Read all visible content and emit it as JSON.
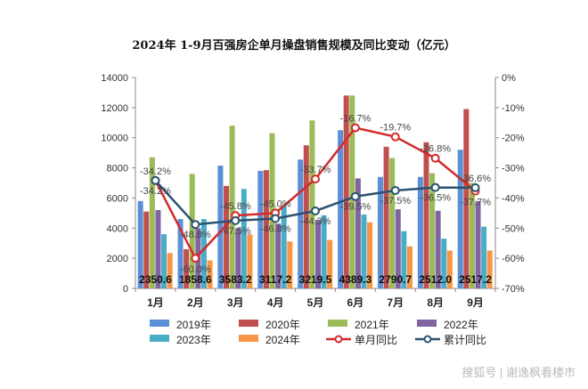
{
  "chart_data": {
    "type": "bar",
    "title": "2024年 1-9月百强房企单月操盘销售规模及同比变动（亿元）",
    "categories": [
      "1月",
      "2月",
      "3月",
      "4月",
      "5月",
      "6月",
      "7月",
      "8月",
      "9月"
    ],
    "ylim": [
      0,
      14000
    ],
    "yticks": [
      0,
      2000,
      4000,
      6000,
      8000,
      10000,
      12000,
      14000
    ],
    "y2lim": [
      -70,
      0
    ],
    "y2ticks": [
      "0%",
      "-10%",
      "-20%",
      "-30%",
      "-40%",
      "-50%",
      "-60%",
      "-70%"
    ],
    "grid": false,
    "legend_position": "bottom",
    "series": [
      {
        "name": "2019年",
        "kind": "bar",
        "color": "#5b8fd6",
        "values": [
          5800,
          4600,
          8150,
          7800,
          8550,
          10500,
          7400,
          7400,
          9200
        ]
      },
      {
        "name": "2020年",
        "kind": "bar",
        "color": "#c0504d",
        "values": [
          5100,
          2600,
          6800,
          7850,
          9500,
          12800,
          9400,
          9700,
          11900
        ]
      },
      {
        "name": "2021年",
        "kind": "bar",
        "color": "#9bbb59",
        "values": [
          8700,
          7600,
          10800,
          10300,
          11150,
          12800,
          8650,
          7650,
          7000
        ]
      },
      {
        "name": "2022年",
        "kind": "bar",
        "color": "#8064a2",
        "values": [
          5200,
          4000,
          4000,
          4300,
          4550,
          7300,
          5250,
          5150,
          5800
        ]
      },
      {
        "name": "2023年",
        "kind": "bar",
        "color": "#4bacc6",
        "values": [
          3600,
          4600,
          6600,
          5500,
          4850,
          4900,
          3800,
          3300,
          4100
        ]
      },
      {
        "name": "2024年",
        "kind": "bar",
        "color": "#f79646",
        "values": [
          2350.6,
          1858.6,
          3583.2,
          3117.2,
          3219.5,
          4389.3,
          2790.7,
          2512.0,
          2517.2
        ],
        "labels": [
          "2350.6",
          "1858.6",
          "3583.2",
          "3117.2",
          "3219.5",
          "4389.3",
          "2790.7",
          "2512.0",
          "2517.2"
        ]
      },
      {
        "name": "单月同比",
        "kind": "line",
        "axis": "right",
        "color": "#d42a2a",
        "values": [
          -34.2,
          -60.0,
          -45.8,
          -45.0,
          -33.7,
          -16.7,
          -19.7,
          -26.8,
          -37.7
        ],
        "labels": [
          "-34.2%",
          "-60.0%",
          "-45.8%",
          "-45.0%",
          "-33.7%",
          "-16.7%",
          "-19.7%",
          "-26.8%",
          "-37.7%"
        ]
      },
      {
        "name": "累计同比",
        "kind": "line",
        "axis": "right",
        "color": "#2b5270",
        "values": [
          -34.2,
          -48.8,
          -47.5,
          -46.8,
          -44.3,
          -39.5,
          -37.5,
          -36.5,
          -36.6
        ],
        "labels": [
          "-34.2%",
          "-48.8%",
          "-47.5%",
          "-46.8%",
          "-44.3%",
          "-39.5%",
          "-37.5%",
          "-36.5%",
          "-36.6%"
        ]
      }
    ]
  },
  "watermark": "搜狐号 | 谢逸枫看楼市"
}
